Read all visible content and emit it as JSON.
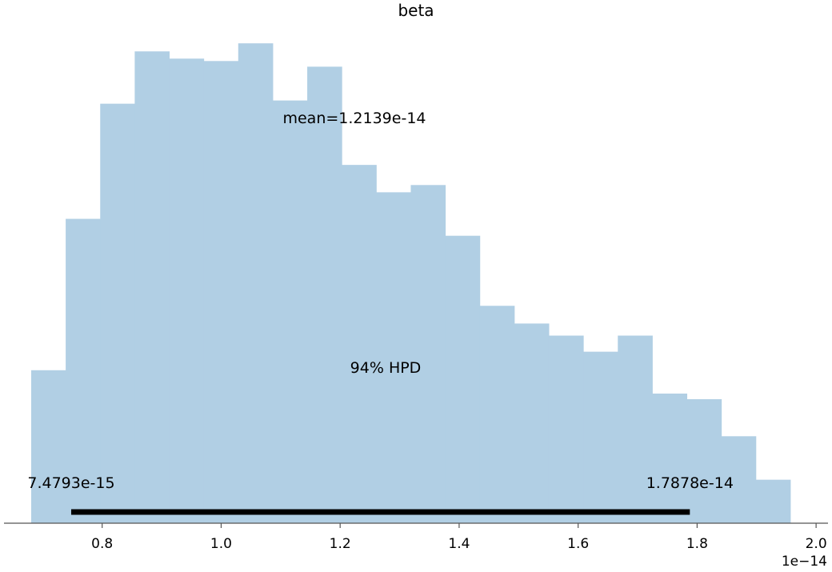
{
  "chart_data": {
    "type": "bar",
    "title": "beta",
    "xlabel": "",
    "ylabel": "",
    "bin_edges": [
      0.6807,
      0.7387,
      0.7967,
      0.8547,
      0.9127,
      0.9707,
      1.0287,
      1.0867,
      1.1447,
      1.2027,
      1.2607,
      1.3187,
      1.3767,
      1.4347,
      1.4927,
      1.5507,
      1.6087,
      1.6667,
      1.7247,
      1.7827,
      1.8407,
      1.8987,
      1.9567
    ],
    "values": [
      190,
      378,
      521,
      586,
      577,
      574,
      596,
      525,
      567,
      445,
      411,
      420,
      357,
      270,
      248,
      233,
      213,
      233,
      161,
      154,
      108,
      54
    ],
    "xlim": [
      0.635,
      2.02
    ],
    "ylim": [
      0,
      620
    ],
    "xticks": [
      "0.8",
      "1.0",
      "1.2",
      "1.4",
      "1.6",
      "1.8",
      "2.0"
    ],
    "xtick_values": [
      0.8,
      1.0,
      1.2,
      1.4,
      1.6,
      1.8,
      2.0
    ],
    "x_offset_label": "1e−14",
    "mean_label": "mean=1.2139e-14",
    "hpd_label": "94% HPD",
    "hpd_interval": [
      0.74793,
      1.7878
    ],
    "hpd_low_label": "7.4793e-15",
    "hpd_high_label": "1.7878e-14",
    "colors": {
      "bars": "#b1cfe4",
      "hpd_line": "#000000",
      "axis": "#555555"
    }
  }
}
